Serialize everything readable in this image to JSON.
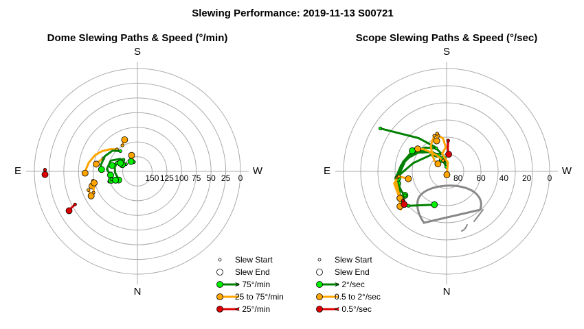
{
  "title": "Slewing Performance: 2019-11-13 S00721",
  "colors": {
    "fast": "#008000",
    "fast_marker": "#00ee00",
    "medium": "#ffa500",
    "slow": "#dd0000",
    "grid": "#aaaaaa",
    "obstruction": "#888888"
  },
  "chart_data": [
    {
      "type": "polar",
      "title": "Dome Slewing Paths & Speed (°/min)",
      "directions": {
        "top": "S",
        "left": "E",
        "right": "W",
        "bottom": "N"
      },
      "radial_axis": {
        "min_at_edge": 0,
        "max_at_center": 175,
        "ticks": [
          150,
          125,
          100,
          75,
          50,
          25,
          0
        ],
        "rings": [
          25,
          50,
          75,
          100,
          125,
          150
        ]
      },
      "legend": [
        {
          "kind": "start",
          "label": "Slew Start"
        },
        {
          "kind": "end",
          "label": "Slew End"
        },
        {
          "kind": "fast",
          "label": "> 75°/min"
        },
        {
          "kind": "medium",
          "label": "25 to 75°/min"
        },
        {
          "kind": "slow",
          "label": "< 25°/min"
        }
      ],
      "slews": [
        {
          "speed": "medium",
          "path": [
            [
              124,
              43
            ],
            [
              116,
              50
            ],
            [
              106,
              60
            ],
            [
              98,
              69
            ],
            [
              91,
              80
            ],
            [
              88,
              87
            ],
            [
              86,
              92
            ]
          ]
        },
        {
          "speed": "medium",
          "path": [
            [
              157,
              22
            ],
            [
              146,
              20
            ]
          ]
        },
        {
          "speed": "medium",
          "path": [
            [
              124,
              30
            ],
            [
              117,
              22
            ]
          ]
        },
        {
          "speed": "medium",
          "path": [
            [
              113,
              69
            ],
            [
              106,
              77
            ],
            [
              104,
              80
            ]
          ]
        },
        {
          "speed": "medium",
          "path": [
            [
              98,
              102
            ],
            [
              96,
              104
            ],
            [
              94,
              108
            ]
          ]
        },
        {
          "speed": "medium",
          "path": [
            [
              92,
              116
            ],
            [
              95,
              112
            ],
            [
              99,
              105
            ]
          ]
        },
        {
          "speed": "medium",
          "path": [
            [
              86,
              111
            ],
            [
              86,
              118
            ]
          ]
        },
        {
          "speed": "fast",
          "path": [
            [
              130,
              40
            ],
            [
              120,
              50
            ],
            [
              114,
              65
            ],
            [
              112,
              80
            ],
            [
              113,
              85
            ],
            [
              114,
              87
            ]
          ]
        },
        {
          "speed": "fast",
          "path": [
            [
              139,
              65
            ],
            [
              131,
              77
            ]
          ]
        },
        {
          "speed": "fast",
          "path": [
            [
              144,
              50
            ],
            [
              137,
              72
            ],
            [
              136,
              80
            ],
            [
              137,
              93
            ],
            [
              139,
              102
            ],
            [
              140,
              112
            ],
            [
              140,
              115
            ]
          ]
        },
        {
          "speed": "fast",
          "path": [
            [
              152,
              58
            ],
            [
              147,
              66
            ]
          ]
        },
        {
          "speed": "fast",
          "path": [
            [
              145,
              55
            ],
            [
              139,
              54
            ],
            [
              126,
              68
            ],
            [
              123,
              86
            ],
            [
              129,
              98
            ]
          ]
        },
        {
          "speed": "fast",
          "path": [
            [
              137,
              68
            ],
            [
              143,
              64
            ]
          ]
        },
        {
          "speed": "fast",
          "path": [
            [
              158,
              20
            ],
            [
              155,
              33
            ]
          ]
        },
        {
          "speed": "fast",
          "path": [
            [
              124,
              110
            ],
            [
              128,
              109
            ]
          ]
        },
        {
          "speed": "fast",
          "path": [
            [
              129,
              107
            ],
            [
              135,
              112
            ]
          ]
        },
        {
          "speed": "slow",
          "path": [
            [
              18,
              89
            ],
            [
              18,
              92
            ]
          ]
        },
        {
          "speed": "slow",
          "path": [
            [
              55,
              118
            ],
            [
              47,
              119
            ],
            [
              41,
              120
            ]
          ]
        }
      ]
    },
    {
      "type": "polar",
      "title": "Scope Slewing Paths & Speed (°/sec)",
      "directions": {
        "top": "S",
        "left": "E",
        "right": "W",
        "bottom": "N"
      },
      "radial_axis": {
        "min_at_edge": 0,
        "max_at_center": 90,
        "ticks": [
          80,
          60,
          40,
          20,
          0
        ],
        "rings": [
          15,
          30,
          45,
          60,
          75
        ]
      },
      "legend": [
        {
          "kind": "start",
          "label": "Slew Start"
        },
        {
          "kind": "end",
          "label": "Slew End"
        },
        {
          "kind": "fast",
          "label": "> 2°/sec"
        },
        {
          "kind": "medium",
          "label": "0.5 to 2°/sec"
        },
        {
          "kind": "slow",
          "label": "< 0.5°/sec"
        }
      ],
      "slews": [
        {
          "speed": "fast",
          "path": [
            [
              21,
              57
            ],
            [
              52,
              40
            ],
            [
              66,
              26
            ],
            [
              78,
              5
            ],
            [
              83,
              10
            ],
            [
              79,
              20
            ]
          ]
        },
        {
          "speed": "fast",
          "path": [
            [
              86,
              4
            ],
            [
              79,
              20
            ],
            [
              76,
              26
            ],
            [
              70,
              45
            ],
            [
              60,
              76
            ],
            [
              48,
              95
            ],
            [
              43,
              120
            ]
          ]
        },
        {
          "speed": "fast",
          "path": [
            [
              74,
              24
            ],
            [
              66,
              43
            ],
            [
              59,
              55
            ],
            [
              53,
              73
            ],
            [
              48,
              95
            ],
            [
              46,
              104
            ]
          ]
        },
        {
          "speed": "fast",
          "path": [
            [
              68,
              24
            ],
            [
              62,
              42
            ],
            [
              55,
              62
            ],
            [
              51,
              78
            ],
            [
              47,
              98
            ]
          ]
        },
        {
          "speed": "fast",
          "path": [
            [
              80,
              14
            ],
            [
              69,
              36
            ],
            [
              60,
              57
            ],
            [
              55,
              70
            ],
            [
              50,
              82
            ],
            [
              45,
              98
            ],
            [
              47,
              114
            ],
            [
              48,
              120
            ]
          ]
        },
        {
          "speed": "fast",
          "path": [
            [
              73,
              31
            ],
            [
              68,
              41
            ],
            [
              61,
              53
            ],
            [
              55,
              59
            ]
          ]
        },
        {
          "speed": "fast",
          "path": [
            [
              48,
              120
            ],
            [
              43,
              124
            ]
          ]
        },
        {
          "speed": "fast",
          "path": [
            [
              45,
              132
            ],
            [
              59,
              160
            ]
          ]
        },
        {
          "speed": "medium",
          "path": [
            [
              58,
              13
            ],
            [
              61,
              6
            ],
            [
              69,
              2
            ],
            [
              74,
              14
            ],
            [
              79,
              6
            ],
            [
              82,
              352
            ],
            [
              87,
              185
            ]
          ]
        },
        {
          "speed": "medium",
          "path": [
            [
              57,
              19
            ],
            [
              61,
              26
            ],
            [
              64,
              32
            ],
            [
              71,
              41
            ],
            [
              76,
              49
            ],
            [
              80,
              49
            ]
          ]
        },
        {
          "speed": "medium",
          "path": [
            [
              80,
              18
            ],
            [
              74,
              31
            ],
            [
              70,
              37
            ],
            [
              68,
              40
            ],
            [
              62,
              46
            ],
            [
              58,
              52
            ]
          ]
        },
        {
          "speed": "medium",
          "path": [
            [
              48,
              96
            ],
            [
              43,
              103
            ],
            [
              43,
              118
            ],
            [
              38,
              130
            ],
            [
              39,
              127
            ]
          ]
        },
        {
          "speed": "medium",
          "path": [
            [
              47,
              97
            ],
            [
              45,
              100
            ],
            [
              43,
              120
            ]
          ]
        },
        {
          "speed": "medium",
          "path": [
            [
              56,
              14
            ],
            [
              62,
              18
            ]
          ]
        },
        {
          "speed": "medium",
          "path": [
            [
              48,
              96
            ],
            [
              56,
              101
            ]
          ]
        },
        {
          "speed": "slow",
          "path": [
            [
              63,
              357
            ],
            [
              70,
              357
            ],
            [
              75,
              353
            ]
          ]
        },
        {
          "speed": "slow",
          "path": [
            [
              44,
              124
            ],
            [
              43,
              128
            ]
          ]
        }
      ]
    }
  ]
}
